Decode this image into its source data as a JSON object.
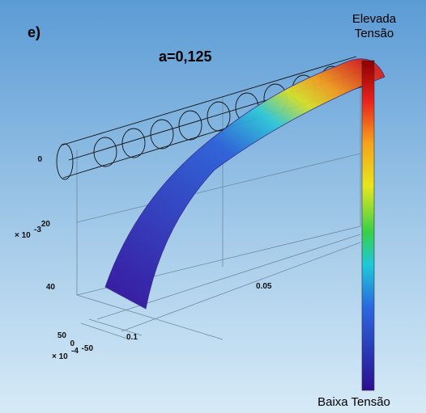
{
  "panel_label": "e)",
  "title": "a=0,125",
  "colorbar": {
    "top_label": [
      "Elevada",
      "Tensão"
    ],
    "bottom_label": "Baixa Tensão"
  },
  "vertical_axis": {
    "ticks": [
      "0",
      "20",
      "40"
    ],
    "multiplier": {
      "base": "× 10",
      "exponent": "-3"
    }
  },
  "front_axis": {
    "ticks": [
      "50",
      "0",
      "-50"
    ],
    "multiplier": {
      "base": "× 10",
      "exponent": "-4"
    }
  },
  "depth_axis": {
    "ticks": [
      "0.1",
      "0.05"
    ]
  }
}
